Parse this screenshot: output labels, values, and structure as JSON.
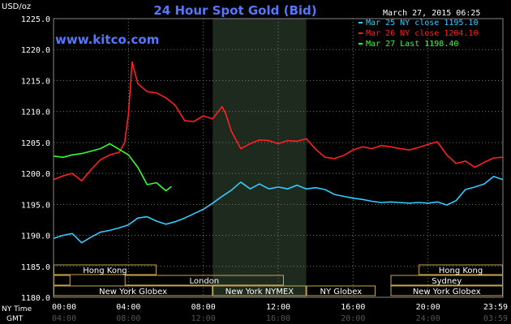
{
  "chart_data": {
    "type": "line",
    "title": "24 Hour Spot Gold (Bid)",
    "ylabel": "USD/oz",
    "date": "March 27, 2015 06:25",
    "watermark": "www.kitco.com",
    "ylim": [
      1180,
      1225
    ],
    "xlim": [
      0,
      24
    ],
    "y_ticks": [
      "1180.0",
      "1185.0",
      "1190.0",
      "1195.0",
      "1200.0",
      "1205.0",
      "1210.0",
      "1215.0",
      "1220.0",
      "1225.0"
    ],
    "x_ticks_ny": [
      "00:00",
      "04:00",
      "08:00",
      "12:00",
      "16:00",
      "20:00",
      "23:59"
    ],
    "x_ticks_gmt": [
      "04:00",
      "08:00",
      "12:00",
      "16:00",
      "20:00",
      "24:00",
      "03:59"
    ],
    "x_row_labels": {
      "ny": "NY Time",
      "gmt": "GMT"
    },
    "highlight_band": [
      8.5,
      13.5
    ],
    "legend_position": "top-right",
    "series": [
      {
        "name": "Mar 25 NY close 1195.10",
        "color": "#33ccff",
        "x": [
          0.0,
          0.5,
          1.0,
          1.5,
          2.0,
          2.5,
          3.0,
          3.5,
          4.0,
          4.5,
          5.0,
          5.5,
          6.0,
          6.5,
          7.0,
          7.5,
          8.0,
          8.5,
          9.0,
          9.5,
          10.0,
          10.5,
          11.0,
          11.5,
          12.0,
          12.5,
          13.0,
          13.5,
          14.0,
          14.5,
          15.0,
          15.5,
          16.0,
          16.5,
          17.0,
          17.5,
          18.0,
          18.5,
          19.0,
          19.5,
          20.0,
          20.5,
          21.0,
          21.5,
          22.0,
          22.5,
          23.0,
          23.5,
          24.0
        ],
        "y": [
          1189.5,
          1190.0,
          1190.3,
          1188.8,
          1189.7,
          1190.5,
          1190.8,
          1191.2,
          1191.7,
          1192.8,
          1193.0,
          1192.3,
          1191.8,
          1192.2,
          1192.8,
          1193.5,
          1194.2,
          1195.2,
          1196.3,
          1197.3,
          1198.6,
          1197.5,
          1198.3,
          1197.5,
          1197.8,
          1197.5,
          1198.1,
          1197.5,
          1197.7,
          1197.4,
          1196.6,
          1196.3,
          1196.0,
          1195.8,
          1195.5,
          1195.3,
          1195.4,
          1195.3,
          1195.2,
          1195.3,
          1195.2,
          1195.4,
          1194.9,
          1195.6,
          1197.4,
          1197.8,
          1198.3,
          1199.5,
          1199.0
        ]
      },
      {
        "name": "Mar 26 NY close 1204.10",
        "color": "#ff2020",
        "x": [
          0.0,
          0.5,
          1.0,
          1.5,
          2.0,
          2.5,
          3.0,
          3.5,
          3.8,
          4.0,
          4.2,
          4.5,
          5.0,
          5.5,
          6.0,
          6.5,
          7.0,
          7.5,
          8.0,
          8.5,
          9.0,
          9.2,
          9.5,
          10.0,
          10.5,
          11.0,
          11.5,
          12.0,
          12.5,
          13.0,
          13.5,
          14.0,
          14.5,
          15.0,
          15.5,
          16.0,
          16.5,
          17.0,
          17.5,
          18.0,
          18.5,
          19.0,
          19.5,
          20.0,
          20.5,
          21.0,
          21.5,
          22.0,
          22.5,
          23.0,
          23.5,
          24.0
        ],
        "y": [
          1199.0,
          1199.6,
          1200.0,
          1198.8,
          1200.6,
          1202.2,
          1203.0,
          1203.4,
          1205.0,
          1209.5,
          1218.0,
          1214.5,
          1213.2,
          1213.0,
          1212.2,
          1211.0,
          1208.5,
          1208.4,
          1209.3,
          1208.8,
          1210.8,
          1209.6,
          1206.8,
          1204.0,
          1204.8,
          1205.4,
          1205.3,
          1204.8,
          1205.3,
          1205.2,
          1205.6,
          1203.9,
          1202.6,
          1202.4,
          1202.9,
          1203.8,
          1204.3,
          1204.0,
          1204.5,
          1204.3,
          1204.0,
          1203.8,
          1204.2,
          1204.7,
          1205.1,
          1203.0,
          1201.6,
          1202.0,
          1201.0,
          1201.8,
          1202.5,
          1202.6
        ]
      },
      {
        "name": "Mar 27 Last 1198.40",
        "color": "#33ff33",
        "x": [
          0.0,
          0.5,
          1.0,
          1.5,
          2.0,
          2.5,
          3.0,
          3.5,
          4.0,
          4.5,
          5.0,
          5.5,
          6.0,
          6.3
        ],
        "y": [
          1202.8,
          1202.6,
          1203.0,
          1203.2,
          1203.6,
          1204.0,
          1204.8,
          1203.9,
          1203.0,
          1201.0,
          1198.2,
          1198.5,
          1197.2,
          1197.9
        ]
      }
    ],
    "sessions": [
      {
        "label": "Hong Kong",
        "row": 0,
        "start": 0.0,
        "end": 5.5
      },
      {
        "label": "London",
        "row": 1,
        "start": 0.0,
        "end": 0.9,
        "blank": true
      },
      {
        "label": "London",
        "row": 1,
        "start": 3.8,
        "end": 12.3
      },
      {
        "label": "New York Globex",
        "row": 2,
        "start": 0.0,
        "end": 8.5
      },
      {
        "label": "New York NYMEX",
        "row": 2,
        "start": 8.5,
        "end": 13.5
      },
      {
        "label": "NY Globex",
        "row": 2,
        "start": 13.5,
        "end": 17.2
      },
      {
        "label": "Hong Kong",
        "row": 0,
        "start": 19.5,
        "end": 24.0
      },
      {
        "label": "Sydney",
        "row": 1,
        "start": 18.0,
        "end": 24.0
      },
      {
        "label": "New York Globex",
        "row": 2,
        "start": 18.0,
        "end": 24.0
      }
    ]
  }
}
